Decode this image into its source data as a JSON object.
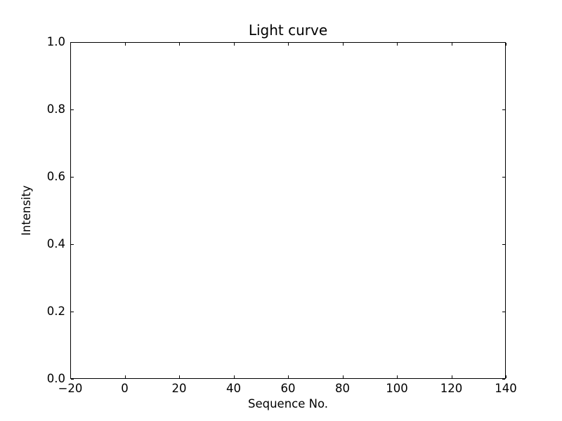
{
  "chart_data": {
    "type": "line",
    "title": "Light curve",
    "xlabel": "Sequence No.",
    "ylabel": "Intensity",
    "xlim": [
      -20,
      140
    ],
    "ylim": [
      0.0,
      1.0
    ],
    "x_ticks": [
      -20,
      0,
      20,
      40,
      60,
      80,
      100,
      120,
      140
    ],
    "x_tick_labels": [
      "−20",
      "0",
      "20",
      "40",
      "60",
      "80",
      "100",
      "120",
      "140"
    ],
    "y_ticks": [
      0.0,
      0.2,
      0.4,
      0.6,
      0.8,
      1.0
    ],
    "y_tick_labels": [
      "0.0",
      "0.2",
      "0.4",
      "0.6",
      "0.8",
      "1.0"
    ],
    "series": [],
    "grid": false,
    "legend": null,
    "tick_direction": "in",
    "colors": {
      "background": "#ffffff",
      "axis": "#000000",
      "text": "#000000"
    }
  }
}
